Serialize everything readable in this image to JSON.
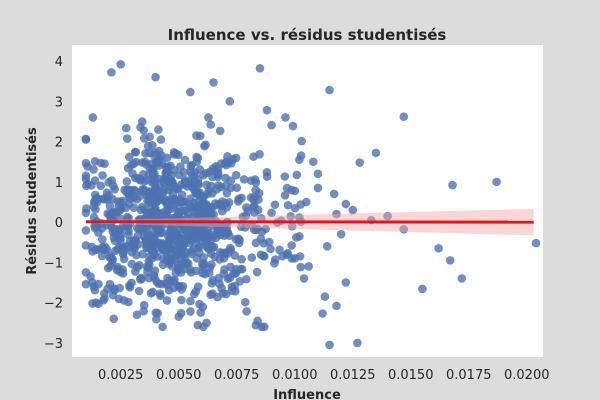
{
  "chart_data": {
    "type": "scatter",
    "title": "Influence vs. résidus studentisés",
    "xlabel": "Influence",
    "ylabel": "Résidus studentisés",
    "xlim": [
      0.0004,
      0.0207
    ],
    "ylim": [
      -3.35,
      4.4
    ],
    "xticks": [
      0.0025,
      0.005,
      0.0075,
      0.01,
      0.0125,
      0.015,
      0.0175,
      0.02
    ],
    "xtick_labels": [
      "0.0025",
      "0.0050",
      "0.0075",
      "0.0100",
      "0.0125",
      "0.0150",
      "0.0175",
      "0.0200"
    ],
    "yticks": [
      -3,
      -2,
      -1,
      0,
      1,
      2,
      3,
      4
    ],
    "ytick_labels": [
      "−3",
      "−2",
      "−1",
      "0",
      "1",
      "2",
      "3",
      "4"
    ],
    "grid": false,
    "point_color": "#4c72b0",
    "line_color": "#e4151a",
    "band_color": "#f4a5a7",
    "regression": {
      "x": [
        0.001,
        0.0203
      ],
      "y": [
        0.01,
        0.0
      ],
      "ci_upper": [
        0.04,
        0.33
      ],
      "ci_lower": [
        -0.03,
        -0.33
      ]
    },
    "cluster": {
      "count": 900,
      "x_range": [
        0.001,
        0.0103
      ],
      "x_center": 0.0045,
      "y_sd": 1.0
    },
    "outliers": [
      {
        "x": 0.0021,
        "y": 3.72
      },
      {
        "x": 0.0025,
        "y": 3.92
      },
      {
        "x": 0.004,
        "y": 3.6
      },
      {
        "x": 0.0065,
        "y": 3.47
      },
      {
        "x": 0.0055,
        "y": 3.23
      },
      {
        "x": 0.0085,
        "y": 3.82
      },
      {
        "x": 0.0115,
        "y": 3.28
      },
      {
        "x": 0.0147,
        "y": 2.62
      },
      {
        "x": 0.0072,
        "y": 3.0
      },
      {
        "x": 0.001,
        "y": 2.05
      },
      {
        "x": 0.0013,
        "y": 2.6
      },
      {
        "x": 0.0088,
        "y": 2.78
      },
      {
        "x": 0.011,
        "y": 1.2
      },
      {
        "x": 0.0117,
        "y": 0.7
      },
      {
        "x": 0.0122,
        "y": 0.45
      },
      {
        "x": 0.0125,
        "y": 0.3
      },
      {
        "x": 0.0128,
        "y": 1.48
      },
      {
        "x": 0.0135,
        "y": 1.72
      },
      {
        "x": 0.014,
        "y": 0.15
      },
      {
        "x": 0.0147,
        "y": -0.18
      },
      {
        "x": 0.0168,
        "y": 0.92
      },
      {
        "x": 0.0187,
        "y": 1.0
      },
      {
        "x": 0.0204,
        "y": -0.52
      },
      {
        "x": 0.0162,
        "y": -0.65
      },
      {
        "x": 0.0167,
        "y": -0.95
      },
      {
        "x": 0.0172,
        "y": -1.4
      },
      {
        "x": 0.0155,
        "y": -1.66
      },
      {
        "x": 0.0122,
        "y": -1.5
      },
      {
        "x": 0.0118,
        "y": -2.08
      },
      {
        "x": 0.0115,
        "y": -3.05
      },
      {
        "x": 0.0127,
        "y": -3.0
      },
      {
        "x": 0.0112,
        "y": -2.27
      },
      {
        "x": 0.0113,
        "y": -1.85
      },
      {
        "x": 0.011,
        "y": 0.85
      },
      {
        "x": 0.0108,
        "y": 1.5
      },
      {
        "x": 0.0114,
        "y": -0.6
      },
      {
        "x": 0.012,
        "y": -0.3
      },
      {
        "x": 0.0133,
        "y": 0.05
      },
      {
        "x": 0.0105,
        "y": 0.5
      },
      {
        "x": 0.0106,
        "y": -1.1
      },
      {
        "x": 0.0118,
        "y": 0.2
      },
      {
        "x": 0.0102,
        "y": 1.55
      },
      {
        "x": 0.01,
        "y": -0.9
      },
      {
        "x": 0.0104,
        "y": -1.4
      },
      {
        "x": 0.0032,
        "y": -2.3
      },
      {
        "x": 0.005,
        "y": -2.35
      },
      {
        "x": 0.0062,
        "y": -2.5
      },
      {
        "x": 0.0084,
        "y": -2.45
      },
      {
        "x": 0.0022,
        "y": -2.4
      },
      {
        "x": 0.0018,
        "y": -1.9
      },
      {
        "x": 0.0012,
        "y": -1.35
      }
    ]
  }
}
